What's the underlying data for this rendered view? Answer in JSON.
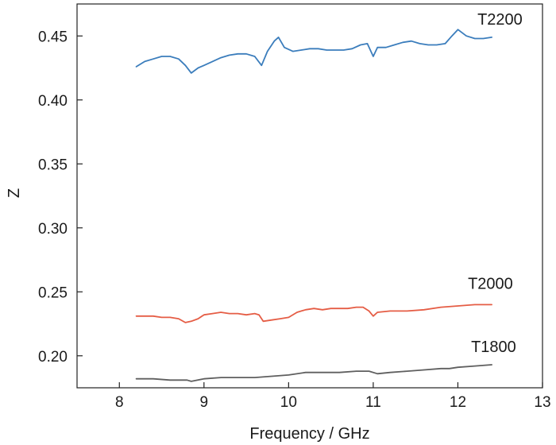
{
  "chart_data": {
    "type": "line",
    "xlabel": "Frequency / GHz",
    "ylabel": "Z",
    "xlim": [
      7.5,
      13
    ],
    "ylim": [
      0.175,
      0.475
    ],
    "xticks": [
      "8",
      "9",
      "10",
      "11",
      "12",
      "13"
    ],
    "yticks": [
      "0.20",
      "0.25",
      "0.30",
      "0.35",
      "0.40",
      "0.45"
    ],
    "grid": false,
    "legend": "labels at series ends",
    "series": [
      {
        "name": "T2200",
        "color": "#3b7dbc",
        "x": [
          8.2,
          8.3,
          8.4,
          8.5,
          8.6,
          8.7,
          8.78,
          8.85,
          8.93,
          9.0,
          9.1,
          9.2,
          9.3,
          9.4,
          9.5,
          9.6,
          9.68,
          9.75,
          9.83,
          9.88,
          9.95,
          10.05,
          10.15,
          10.25,
          10.35,
          10.45,
          10.55,
          10.65,
          10.75,
          10.85,
          10.93,
          11.0,
          11.05,
          11.15,
          11.25,
          11.35,
          11.45,
          11.55,
          11.65,
          11.75,
          11.85,
          11.93,
          12.0,
          12.1,
          12.2,
          12.3,
          12.4
        ],
        "y": [
          0.426,
          0.43,
          0.432,
          0.434,
          0.434,
          0.432,
          0.427,
          0.421,
          0.425,
          0.427,
          0.43,
          0.433,
          0.435,
          0.436,
          0.436,
          0.434,
          0.427,
          0.438,
          0.446,
          0.449,
          0.441,
          0.438,
          0.439,
          0.44,
          0.44,
          0.439,
          0.439,
          0.439,
          0.44,
          0.443,
          0.444,
          0.434,
          0.441,
          0.441,
          0.443,
          0.445,
          0.446,
          0.444,
          0.443,
          0.443,
          0.444,
          0.45,
          0.455,
          0.45,
          0.448,
          0.448,
          0.449
        ]
      },
      {
        "name": "T2000",
        "color": "#e55d45",
        "x": [
          8.2,
          8.3,
          8.4,
          8.5,
          8.6,
          8.7,
          8.78,
          8.85,
          8.93,
          9.0,
          9.1,
          9.2,
          9.3,
          9.4,
          9.5,
          9.6,
          9.65,
          9.7,
          9.8,
          9.9,
          10.0,
          10.1,
          10.2,
          10.3,
          10.4,
          10.5,
          10.6,
          10.7,
          10.8,
          10.88,
          10.95,
          11.0,
          11.05,
          11.2,
          11.4,
          11.6,
          11.8,
          12.0,
          12.2,
          12.4
        ],
        "y": [
          0.231,
          0.231,
          0.231,
          0.23,
          0.23,
          0.229,
          0.226,
          0.227,
          0.229,
          0.232,
          0.233,
          0.234,
          0.233,
          0.233,
          0.232,
          0.233,
          0.232,
          0.227,
          0.228,
          0.229,
          0.23,
          0.234,
          0.236,
          0.237,
          0.236,
          0.237,
          0.237,
          0.237,
          0.238,
          0.238,
          0.235,
          0.231,
          0.234,
          0.235,
          0.235,
          0.236,
          0.238,
          0.239,
          0.24,
          0.24
        ]
      },
      {
        "name": "T1800",
        "color": "#5f5f5f",
        "x": [
          8.2,
          8.4,
          8.6,
          8.8,
          8.85,
          9.0,
          9.2,
          9.4,
          9.6,
          9.8,
          10.0,
          10.2,
          10.4,
          10.6,
          10.8,
          10.95,
          11.05,
          11.2,
          11.4,
          11.6,
          11.8,
          11.9,
          12.0,
          12.2,
          12.4
        ],
        "y": [
          0.182,
          0.182,
          0.181,
          0.181,
          0.18,
          0.182,
          0.183,
          0.183,
          0.183,
          0.184,
          0.185,
          0.187,
          0.187,
          0.187,
          0.188,
          0.188,
          0.186,
          0.187,
          0.188,
          0.189,
          0.19,
          0.19,
          0.191,
          0.192,
          0.193
        ]
      }
    ]
  }
}
